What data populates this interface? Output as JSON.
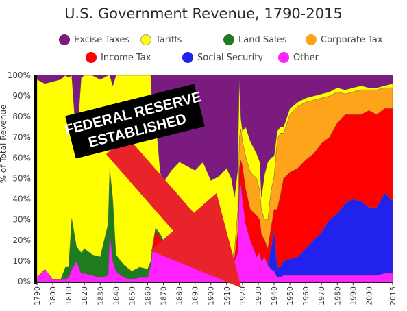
{
  "chart_data": {
    "type": "area",
    "stacked": true,
    "normalized": true,
    "title": "U.S. Government Revenue, 1790-2015",
    "xlabel": "",
    "ylabel": "% of Total Revenue",
    "xlim": [
      1790,
      2015
    ],
    "ylim": [
      0,
      100
    ],
    "x_ticks": [
      1790,
      1800,
      1810,
      1820,
      1830,
      1840,
      1850,
      1860,
      1870,
      1880,
      1890,
      1900,
      1910,
      1920,
      1930,
      1940,
      1950,
      1960,
      1970,
      1980,
      1990,
      2000,
      2015
    ],
    "y_ticks": [
      0,
      10,
      20,
      30,
      40,
      50,
      60,
      70,
      80,
      90,
      100
    ],
    "y_tick_suffix": "%",
    "grid": false,
    "legend_position": "top",
    "colors": {
      "Excise Taxes": "#7b1a7f",
      "Tariffs": "#ffff00",
      "Land Sales": "#1e7b1e",
      "Corporate Tax": "#ffa31a",
      "Income Tax": "#ff0000",
      "Social Security": "#2222ee",
      "Other": "#ff22ff"
    },
    "x": [
      1790,
      1795,
      1800,
      1805,
      1808,
      1810,
      1812,
      1815,
      1818,
      1820,
      1825,
      1830,
      1835,
      1836,
      1838,
      1840,
      1845,
      1850,
      1855,
      1860,
      1862,
      1863,
      1865,
      1868,
      1870,
      1875,
      1880,
      1885,
      1890,
      1895,
      1900,
      1905,
      1910,
      1913,
      1915,
      1917,
      1918,
      1919,
      1920,
      1922,
      1925,
      1929,
      1931,
      1932,
      1934,
      1936,
      1938,
      1940,
      1942,
      1944,
      1946,
      1950,
      1955,
      1960,
      1965,
      1970,
      1975,
      1980,
      1985,
      1990,
      1995,
      2000,
      2005,
      2010,
      2015
    ],
    "series": [
      {
        "name": "Other",
        "values": [
          2,
          6,
          1,
          1,
          1,
          2,
          6,
          10,
          4,
          4,
          3,
          2,
          3,
          25,
          10,
          5,
          2,
          1,
          2,
          2,
          8,
          15,
          17,
          16,
          14,
          12,
          11,
          9,
          8,
          9,
          8,
          7,
          7,
          7,
          10,
          14,
          45,
          47,
          40,
          28,
          20,
          12,
          14,
          10,
          12,
          8,
          6,
          5,
          2,
          2,
          3,
          3,
          3,
          3,
          3,
          3,
          3,
          3,
          3,
          3,
          3,
          3,
          3,
          4,
          4
        ]
      },
      {
        "name": "Social Security",
        "values": [
          0,
          0,
          0,
          0,
          0,
          0,
          0,
          0,
          0,
          0,
          0,
          0,
          0,
          0,
          0,
          0,
          0,
          0,
          0,
          0,
          0,
          0,
          0,
          0,
          0,
          0,
          0,
          0,
          0,
          0,
          0,
          0,
          0,
          0,
          0,
          0,
          0,
          0,
          0,
          0,
          0,
          0,
          0,
          0,
          0,
          0,
          10,
          20,
          5,
          5,
          7,
          8,
          9,
          13,
          17,
          21,
          27,
          30,
          35,
          37,
          36,
          33,
          33,
          39,
          35
        ]
      },
      {
        "name": "Income Tax",
        "values": [
          0,
          0,
          0,
          0,
          0,
          0,
          0,
          0,
          0,
          0,
          0,
          0,
          0,
          0,
          0,
          0,
          0,
          0,
          0,
          0,
          0,
          0,
          8,
          5,
          4,
          0,
          0,
          0,
          0,
          0,
          0,
          0,
          0,
          0,
          2,
          10,
          10,
          12,
          16,
          17,
          15,
          20,
          16,
          13,
          8,
          8,
          10,
          10,
          28,
          35,
          40,
          42,
          43,
          43,
          42,
          43,
          40,
          44,
          43,
          41,
          42,
          47,
          45,
          41,
          45
        ]
      },
      {
        "name": "Corporate Tax",
        "values": [
          0,
          0,
          0,
          0,
          0,
          0,
          0,
          0,
          0,
          0,
          0,
          0,
          0,
          0,
          0,
          0,
          0,
          0,
          0,
          0,
          0,
          0,
          0,
          0,
          0,
          0,
          0,
          0,
          0,
          0,
          0,
          0,
          2,
          3,
          4,
          10,
          15,
          15,
          12,
          16,
          18,
          18,
          14,
          12,
          10,
          14,
          18,
          16,
          34,
          30,
          22,
          28,
          30,
          28,
          26,
          22,
          20,
          15,
          10,
          11,
          12,
          10,
          12,
          10,
          10
        ]
      },
      {
        "name": "Land Sales",
        "values": [
          0,
          0,
          0,
          0,
          6,
          5,
          25,
          7,
          10,
          12,
          10,
          10,
          25,
          30,
          30,
          8,
          6,
          4,
          5,
          4,
          2,
          2,
          1,
          2,
          2,
          2,
          2,
          2,
          1,
          1,
          1,
          1,
          1,
          0,
          0,
          0,
          0,
          0,
          0,
          0,
          0,
          0,
          0,
          0,
          0,
          0,
          0,
          0,
          0,
          0,
          0,
          0,
          0,
          0,
          0,
          0,
          0,
          0,
          0,
          0,
          0,
          0,
          0,
          0,
          0
        ]
      },
      {
        "name": "Tariffs",
        "values": [
          96,
          90,
          96,
          97,
          93,
          92,
          70,
          50,
          85,
          84,
          87,
          86,
          72,
          45,
          55,
          87,
          92,
          95,
          93,
          94,
          90,
          65,
          54,
          30,
          28,
          40,
          45,
          45,
          45,
          48,
          40,
          43,
          45,
          40,
          25,
          20,
          28,
          5,
          5,
          14,
          15,
          12,
          14,
          6,
          22,
          28,
          16,
          10,
          4,
          3,
          3,
          3,
          2,
          2,
          2,
          2,
          2,
          2,
          2,
          2,
          2,
          1,
          1,
          1,
          2
        ]
      },
      {
        "name": "Excise Taxes",
        "values": [
          2,
          4,
          3,
          2,
          0,
          1,
          0,
          33,
          1,
          0,
          0,
          2,
          0,
          0,
          5,
          0,
          0,
          0,
          0,
          0,
          0,
          18,
          20,
          47,
          52,
          46,
          42,
          44,
          46,
          42,
          51,
          49,
          45,
          50,
          59,
          46,
          2,
          21,
          27,
          25,
          32,
          38,
          42,
          59,
          48,
          42,
          40,
          39,
          27,
          25,
          25,
          16,
          13,
          11,
          10,
          9,
          8,
          6,
          7,
          6,
          5,
          6,
          6,
          5,
          4
        ]
      }
    ],
    "annotations": [
      {
        "text_lines": [
          "FEDERAL RESERVE",
          "ESTABLISHED"
        ],
        "points_to_year": 1913
      }
    ]
  }
}
